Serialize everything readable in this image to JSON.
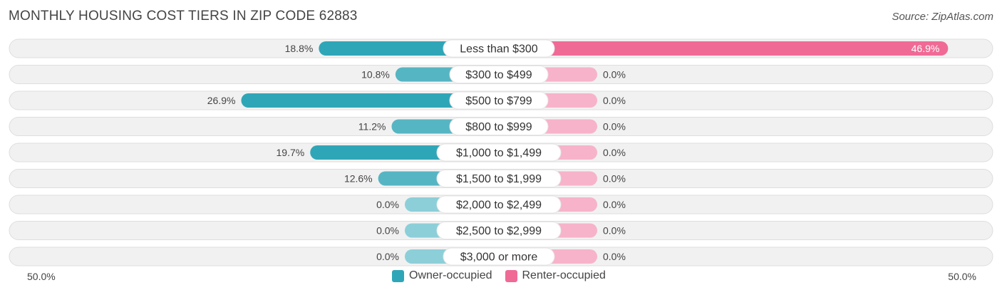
{
  "title": "MONTHLY HOUSING COST TIERS IN ZIP CODE 62883",
  "source": "Source: ZipAtlas.com",
  "colors": {
    "owner": "#2fa6b8",
    "owner_light": "#8ccfd9",
    "renter": "#f06a96",
    "renter_light": "#f7b3c9",
    "row_bg": "#f1f1f1",
    "row_border": "#dedede"
  },
  "chart_data": {
    "type": "bar",
    "orientation": "horizontal-diverging",
    "categories": [
      "Less than $300",
      "$300 to $499",
      "$500 to $799",
      "$800 to $999",
      "$1,000 to $1,499",
      "$1,500 to $1,999",
      "$2,000 to $2,499",
      "$2,500 to $2,999",
      "$3,000 or more"
    ],
    "series": [
      {
        "name": "Owner-occupied",
        "values": [
          18.8,
          10.8,
          26.9,
          11.2,
          19.7,
          12.6,
          0.0,
          0.0,
          0.0
        ],
        "labels": [
          "18.8%",
          "10.8%",
          "26.9%",
          "11.2%",
          "19.7%",
          "12.6%",
          "0.0%",
          "0.0%",
          "0.0%"
        ]
      },
      {
        "name": "Renter-occupied",
        "values": [
          46.9,
          0.0,
          0.0,
          0.0,
          0.0,
          0.0,
          0.0,
          0.0,
          0.0
        ],
        "labels": [
          "46.9%",
          "0.0%",
          "0.0%",
          "0.0%",
          "0.0%",
          "0.0%",
          "0.0%",
          "0.0%",
          "0.0%"
        ]
      }
    ],
    "xlim": [
      -50,
      50
    ],
    "axis_labels": {
      "left": "50.0%",
      "right": "50.0%"
    },
    "legend_position": "bottom-center"
  }
}
